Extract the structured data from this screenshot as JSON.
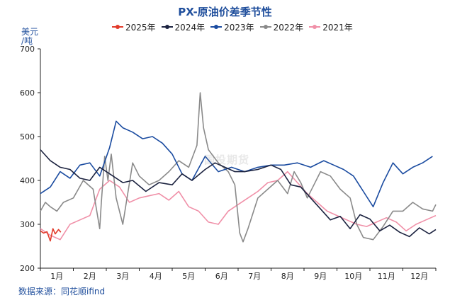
{
  "colors": {
    "title": "#1f4e9c",
    "axis": "#222222"
  },
  "header": {
    "title": "PX-原油价差季节性"
  },
  "unit": {
    "line1": "美元",
    "line2": "/吨"
  },
  "source": {
    "text": "数据来源：同花顺ifind"
  },
  "watermark": {
    "text": "国投期货"
  },
  "chart_data": {
    "type": "line",
    "title": "PX-原油价差季节性",
    "ylabel": "美元/吨",
    "ylim": [
      200,
      700
    ],
    "yticks": [
      200,
      300,
      400,
      500,
      600,
      700
    ],
    "xlim": [
      0,
      12
    ],
    "x_tick_labels": [
      "1月",
      "2月",
      "3月",
      "4月",
      "5月",
      "6月",
      "7月",
      "8月",
      "9月",
      "10月",
      "11月",
      "12月"
    ],
    "grid": false,
    "legend_position": "top",
    "series": [
      {
        "name": "2025年",
        "color": "#e23a2a",
        "x": [
          0.0,
          0.1,
          0.2,
          0.3,
          0.38,
          0.45,
          0.55,
          0.62
        ],
        "y": [
          285,
          280,
          283,
          262,
          290,
          278,
          288,
          282
        ]
      },
      {
        "name": "2024年",
        "color": "#1c2340",
        "x": [
          0,
          0.3,
          0.6,
          0.9,
          1.2,
          1.5,
          1.8,
          2.1,
          2.5,
          2.8,
          3.2,
          3.6,
          4.0,
          4.3,
          4.6,
          5.0,
          5.3,
          5.6,
          5.9,
          6.2,
          6.6,
          7.0,
          7.3,
          7.6,
          7.9,
          8.2,
          8.5,
          8.8,
          9.1,
          9.4,
          9.7,
          10.0,
          10.3,
          10.6,
          10.9,
          11.2,
          11.5,
          11.8,
          12.0
        ],
        "y": [
          470,
          445,
          430,
          425,
          405,
          400,
          430,
          415,
          395,
          400,
          375,
          395,
          390,
          415,
          400,
          425,
          440,
          430,
          420,
          420,
          425,
          435,
          425,
          390,
          385,
          360,
          335,
          310,
          318,
          290,
          322,
          312,
          285,
          298,
          282,
          272,
          292,
          278,
          288
        ]
      },
      {
        "name": "2023年",
        "color": "#1a4ba0",
        "x": [
          0,
          0.3,
          0.6,
          0.9,
          1.2,
          1.5,
          1.8,
          2.1,
          2.3,
          2.5,
          2.8,
          3.1,
          3.4,
          3.7,
          4.0,
          4.3,
          4.6,
          5.0,
          5.4,
          5.8,
          6.2,
          6.6,
          7.0,
          7.4,
          7.8,
          8.2,
          8.6,
          8.9,
          9.2,
          9.5,
          9.8,
          10.1,
          10.4,
          10.7,
          11.0,
          11.3,
          11.6,
          11.9
        ],
        "y": [
          370,
          385,
          420,
          405,
          435,
          440,
          410,
          475,
          535,
          520,
          510,
          495,
          500,
          485,
          460,
          415,
          400,
          455,
          420,
          430,
          420,
          430,
          435,
          435,
          440,
          430,
          445,
          435,
          425,
          410,
          375,
          340,
          395,
          440,
          415,
          430,
          440,
          455
        ]
      },
      {
        "name": "2022年",
        "color": "#8a8a8a",
        "x": [
          0,
          0.15,
          0.3,
          0.5,
          0.7,
          1.0,
          1.3,
          1.6,
          1.8,
          1.85,
          1.95,
          2.05,
          2.15,
          2.3,
          2.5,
          2.8,
          3.0,
          3.3,
          3.6,
          3.9,
          4.2,
          4.5,
          4.75,
          4.85,
          4.95,
          5.1,
          5.4,
          5.7,
          5.9,
          6.05,
          6.15,
          6.3,
          6.6,
          6.9,
          7.2,
          7.5,
          7.7,
          7.9,
          8.1,
          8.3,
          8.5,
          8.8,
          9.1,
          9.4,
          9.6,
          9.8,
          10.1,
          10.4,
          10.7,
          11.0,
          11.3,
          11.6,
          11.9,
          12.0
        ],
        "y": [
          330,
          350,
          340,
          330,
          350,
          360,
          400,
          380,
          290,
          350,
          455,
          400,
          460,
          360,
          300,
          440,
          410,
          390,
          400,
          420,
          445,
          430,
          480,
          600,
          520,
          470,
          440,
          420,
          390,
          280,
          260,
          290,
          360,
          380,
          400,
          370,
          420,
          395,
          360,
          390,
          420,
          410,
          380,
          360,
          300,
          270,
          265,
          295,
          330,
          330,
          350,
          335,
          330,
          345
        ]
      },
      {
        "name": "2021年",
        "color": "#f090a8",
        "x": [
          0,
          0.3,
          0.6,
          0.9,
          1.2,
          1.5,
          1.8,
          2.1,
          2.4,
          2.7,
          3.0,
          3.3,
          3.6,
          3.9,
          4.2,
          4.5,
          4.8,
          5.1,
          5.4,
          5.7,
          6.0,
          6.3,
          6.6,
          6.9,
          7.2,
          7.5,
          7.8,
          8.1,
          8.4,
          8.7,
          9.0,
          9.3,
          9.6,
          9.9,
          10.2,
          10.5,
          10.8,
          11.1,
          11.4,
          11.7,
          12.0
        ],
        "y": [
          290,
          275,
          265,
          300,
          310,
          320,
          380,
          400,
          385,
          350,
          360,
          365,
          370,
          355,
          375,
          340,
          330,
          305,
          300,
          330,
          345,
          360,
          375,
          395,
          400,
          420,
          395,
          370,
          350,
          330,
          320,
          310,
          300,
          295,
          305,
          315,
          305,
          285,
          300,
          310,
          320
        ]
      }
    ]
  }
}
